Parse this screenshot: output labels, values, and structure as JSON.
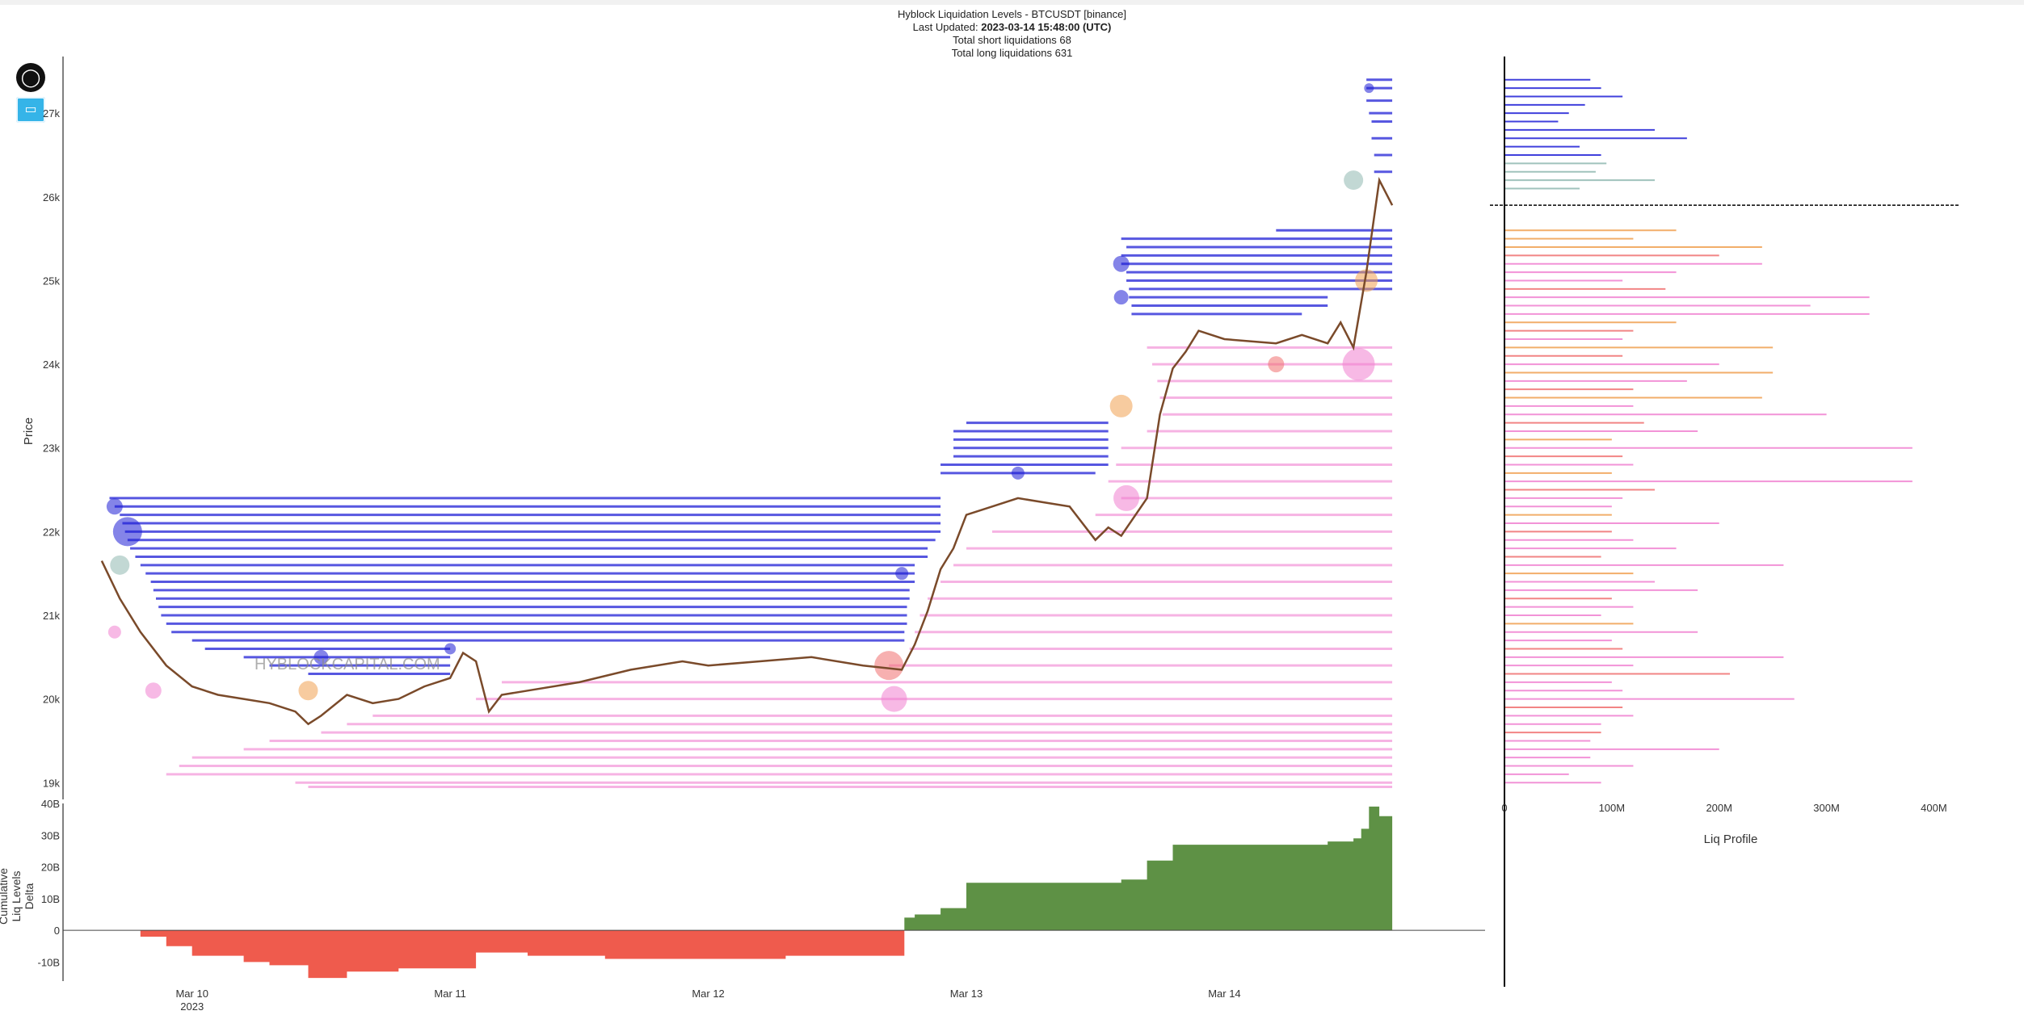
{
  "header": {
    "title": "Hyblock Liquidation Levels - BTCUSDT [binance]",
    "last_updated_label": "Last Updated:",
    "last_updated_value": "2023-03-14 15:48:00 (UTC)",
    "short_liq": "Total short liquidations 68",
    "long_liq": "Total long liquidations 631"
  },
  "watermark": "HYBLOCKCAPITAL.COM",
  "toolbar": {
    "logo_icon": "hyblock-logo-icon",
    "camera_icon": "camera-icon"
  },
  "colors": {
    "short_levels": "#1f1fd6",
    "short_levels_light": "#8fb8b0",
    "long_levels": "#f080d0",
    "long_levels_mid": "#f07070",
    "long_levels_orange": "#f0a050",
    "delta_negative": "#ef5b4d",
    "delta_positive": "#5e9145",
    "candle_up": "#2a7a2a",
    "candle_down": "#d04030"
  },
  "chart_data": [
    {
      "type": "line",
      "name": "price",
      "ylabel": "Price",
      "yticks": [
        "19k",
        "20k",
        "21k",
        "22k",
        "23k",
        "24k",
        "25k",
        "26k",
        "27k"
      ],
      "xticks": [
        "Mar 10",
        "Mar 11",
        "Mar 12",
        "Mar 13",
        "Mar 14"
      ],
      "xtick_sub": "2023",
      "x_range_days": [
        9.5,
        14.75
      ],
      "y_range": [
        18800,
        27600
      ],
      "x": [
        9.65,
        9.72,
        9.8,
        9.9,
        10.0,
        10.1,
        10.2,
        10.3,
        10.4,
        10.45,
        10.5,
        10.6,
        10.7,
        10.8,
        10.9,
        11.0,
        11.05,
        11.1,
        11.15,
        11.2,
        11.3,
        11.5,
        11.7,
        11.9,
        12.0,
        12.2,
        12.4,
        12.6,
        12.75,
        12.8,
        12.85,
        12.9,
        12.95,
        13.0,
        13.1,
        13.2,
        13.3,
        13.4,
        13.5,
        13.55,
        13.6,
        13.7,
        13.75,
        13.8,
        13.85,
        13.9,
        14.0,
        14.2,
        14.3,
        14.4,
        14.45,
        14.5,
        14.55,
        14.6,
        14.65
      ],
      "y": [
        21650,
        21200,
        20800,
        20400,
        20150,
        20050,
        20000,
        19950,
        19850,
        19700,
        19800,
        20050,
        19950,
        20000,
        20150,
        20250,
        20550,
        20450,
        19850,
        20050,
        20100,
        20200,
        20350,
        20450,
        20400,
        20450,
        20500,
        20400,
        20350,
        20650,
        21050,
        21550,
        21800,
        22200,
        22300,
        22400,
        22350,
        22300,
        21900,
        22050,
        21950,
        22400,
        23400,
        23950,
        24150,
        24400,
        24300,
        24250,
        24350,
        24250,
        24500,
        24200,
        25100,
        26200,
        25900
      ]
    },
    {
      "type": "bar",
      "name": "cumulative_liq_levels_delta",
      "ylabel": "Cumulative Liq Levels Delta",
      "yticks": [
        "40B",
        "30B",
        "20B",
        "10B",
        "0",
        "-10B"
      ],
      "y_range": [
        -16,
        40
      ],
      "x": [
        9.65,
        9.8,
        9.9,
        10.0,
        10.2,
        10.3,
        10.45,
        10.6,
        10.8,
        11.0,
        11.1,
        11.3,
        11.6,
        12.0,
        12.3,
        12.7,
        12.76,
        12.8,
        12.9,
        13.0,
        13.5,
        13.6,
        13.7,
        13.8,
        14.0,
        14.2,
        14.4,
        14.5,
        14.53,
        14.56,
        14.6,
        14.65
      ],
      "values": [
        0,
        -2,
        -5,
        -8,
        -10,
        -11,
        -15,
        -13,
        -12,
        -12,
        -7,
        -8,
        -9,
        -9,
        -8,
        -8,
        4,
        5,
        7,
        15,
        15,
        16,
        22,
        27,
        27,
        27,
        28,
        29,
        32,
        39,
        36,
        36
      ]
    },
    {
      "type": "bar",
      "orientation": "horizontal",
      "name": "liq_profile",
      "xlabel": "Liq Profile",
      "xticks": [
        "0",
        "100M",
        "200M",
        "300M",
        "400M"
      ],
      "x_range": [
        0,
        420
      ],
      "current_price": 25900,
      "levels": [
        27400,
        27300,
        27200,
        27100,
        27000,
        26900,
        26800,
        26700,
        26600,
        26500,
        26400,
        26300,
        26200,
        26100,
        25600,
        25500,
        25400,
        25300,
        25200,
        25100,
        25000,
        24900,
        24800,
        24700,
        24600,
        24500,
        24400,
        24300,
        24200,
        24100,
        24000,
        23900,
        23800,
        23700,
        23600,
        23500,
        23400,
        23300,
        23200,
        23100,
        23000,
        22900,
        22800,
        22700,
        22600,
        22500,
        22400,
        22300,
        22200,
        22100,
        22000,
        21900,
        21800,
        21700,
        21600,
        21500,
        21400,
        21300,
        21200,
        21100,
        21000,
        20900,
        20800,
        20700,
        20600,
        20500,
        20400,
        20300,
        20200,
        20100,
        20000,
        19900,
        19800,
        19700,
        19600,
        19500,
        19400,
        19300,
        19200,
        19100,
        19000
      ],
      "values": [
        80,
        90,
        110,
        75,
        60,
        50,
        140,
        170,
        70,
        90,
        95,
        85,
        140,
        70,
        160,
        120,
        240,
        200,
        240,
        160,
        110,
        150,
        340,
        285,
        340,
        160,
        120,
        110,
        250,
        110,
        200,
        250,
        170,
        120,
        240,
        120,
        300,
        130,
        180,
        100,
        380,
        110,
        120,
        100,
        380,
        140,
        110,
        100,
        100,
        200,
        100,
        120,
        160,
        90,
        260,
        120,
        140,
        180,
        100,
        120,
        90,
        120,
        180,
        100,
        110,
        260,
        120,
        210,
        100,
        110,
        270,
        110,
        120,
        90,
        90,
        80,
        200,
        80,
        120,
        60,
        90
      ],
      "category_colors": [
        "short",
        "short",
        "short",
        "short",
        "short",
        "short",
        "short",
        "short",
        "short",
        "short",
        "short-light",
        "short-light",
        "short-light",
        "short-light",
        "long-orange",
        "long-orange",
        "long-orange",
        "long-mid",
        "long",
        "long",
        "long",
        "long-mid",
        "long",
        "long",
        "long",
        "long-orange",
        "long-mid",
        "long",
        "long-orange",
        "long-mid",
        "long",
        "long-orange",
        "long",
        "long-mid",
        "long-orange",
        "long",
        "long",
        "long-mid",
        "long",
        "long-orange",
        "long",
        "long-mid",
        "long",
        "long-orange",
        "long",
        "long-mid",
        "long",
        "long",
        "long-orange",
        "long",
        "long-mid",
        "long",
        "long",
        "long-mid",
        "long",
        "long-orange",
        "long",
        "long",
        "long-mid",
        "long",
        "long",
        "long-orange",
        "long",
        "long",
        "long-mid",
        "long",
        "long",
        "long-mid",
        "long",
        "long",
        "long",
        "long-mid",
        "long",
        "long",
        "long-mid",
        "long",
        "long",
        "long",
        "long",
        "long",
        "long"
      ]
    }
  ],
  "short_levels": [
    {
      "price": 27400,
      "start": 14.55,
      "end": 14.65
    },
    {
      "price": 27300,
      "start": 14.55,
      "end": 14.65
    },
    {
      "price": 27150,
      "start": 14.55,
      "end": 14.65
    },
    {
      "price": 27000,
      "start": 14.56,
      "end": 14.65
    },
    {
      "price": 26900,
      "start": 14.57,
      "end": 14.65
    },
    {
      "price": 26700,
      "start": 14.57,
      "end": 14.65
    },
    {
      "price": 26500,
      "start": 14.58,
      "end": 14.65
    },
    {
      "price": 26300,
      "start": 14.58,
      "end": 14.65
    },
    {
      "price": 25600,
      "start": 14.2,
      "end": 14.65
    },
    {
      "price": 25500,
      "start": 13.6,
      "end": 14.65
    },
    {
      "price": 25400,
      "start": 13.62,
      "end": 14.65
    },
    {
      "price": 25300,
      "start": 13.6,
      "end": 14.65
    },
    {
      "price": 25200,
      "start": 13.6,
      "end": 14.65
    },
    {
      "price": 25100,
      "start": 13.62,
      "end": 14.65
    },
    {
      "price": 25000,
      "start": 13.62,
      "end": 14.65
    },
    {
      "price": 24900,
      "start": 13.63,
      "end": 14.65
    },
    {
      "price": 24800,
      "start": 13.63,
      "end": 14.4
    },
    {
      "price": 24700,
      "start": 13.64,
      "end": 14.4
    },
    {
      "price": 24600,
      "start": 13.64,
      "end": 14.3
    },
    {
      "price": 23300,
      "start": 13.0,
      "end": 13.55
    },
    {
      "price": 23200,
      "start": 12.95,
      "end": 13.55
    },
    {
      "price": 23100,
      "start": 12.95,
      "end": 13.55
    },
    {
      "price": 23000,
      "start": 12.95,
      "end": 13.55
    },
    {
      "price": 22900,
      "start": 12.95,
      "end": 13.55
    },
    {
      "price": 22800,
      "start": 12.9,
      "end": 13.55
    },
    {
      "price": 22700,
      "start": 12.9,
      "end": 13.5
    },
    {
      "price": 22400,
      "start": 9.68,
      "end": 12.9
    },
    {
      "price": 22300,
      "start": 9.7,
      "end": 12.9
    },
    {
      "price": 22200,
      "start": 9.72,
      "end": 12.9
    },
    {
      "price": 22100,
      "start": 9.73,
      "end": 12.9
    },
    {
      "price": 22000,
      "start": 9.74,
      "end": 12.9
    },
    {
      "price": 21900,
      "start": 9.75,
      "end": 12.88
    },
    {
      "price": 21800,
      "start": 9.76,
      "end": 12.85
    },
    {
      "price": 21700,
      "start": 9.78,
      "end": 12.85
    },
    {
      "price": 21600,
      "start": 9.8,
      "end": 12.8
    },
    {
      "price": 21500,
      "start": 9.82,
      "end": 12.8
    },
    {
      "price": 21400,
      "start": 9.84,
      "end": 12.8
    },
    {
      "price": 21300,
      "start": 9.85,
      "end": 12.78
    },
    {
      "price": 21200,
      "start": 9.86,
      "end": 12.78
    },
    {
      "price": 21100,
      "start": 9.87,
      "end": 12.77
    },
    {
      "price": 21000,
      "start": 9.88,
      "end": 12.77
    },
    {
      "price": 20900,
      "start": 9.9,
      "end": 12.77
    },
    {
      "price": 20800,
      "start": 9.92,
      "end": 12.76
    },
    {
      "price": 20700,
      "start": 10.0,
      "end": 12.76
    },
    {
      "price": 20600,
      "start": 10.05,
      "end": 11.0
    },
    {
      "price": 20500,
      "start": 10.2,
      "end": 11.0
    },
    {
      "price": 20400,
      "start": 10.3,
      "end": 11.0
    },
    {
      "price": 20300,
      "start": 10.45,
      "end": 11.0
    }
  ],
  "long_levels": [
    {
      "price": 24200,
      "start": 13.7,
      "end": 14.65
    },
    {
      "price": 24000,
      "start": 13.72,
      "end": 14.65
    },
    {
      "price": 23800,
      "start": 13.74,
      "end": 14.65
    },
    {
      "price": 23600,
      "start": 13.75,
      "end": 14.65
    },
    {
      "price": 23400,
      "start": 13.76,
      "end": 14.65
    },
    {
      "price": 23200,
      "start": 13.7,
      "end": 14.65
    },
    {
      "price": 23000,
      "start": 13.6,
      "end": 14.65
    },
    {
      "price": 22800,
      "start": 13.58,
      "end": 14.65
    },
    {
      "price": 22600,
      "start": 13.55,
      "end": 14.65
    },
    {
      "price": 22400,
      "start": 13.6,
      "end": 14.65
    },
    {
      "price": 22200,
      "start": 13.5,
      "end": 14.65
    },
    {
      "price": 22000,
      "start": 13.1,
      "end": 14.65
    },
    {
      "price": 21800,
      "start": 13.0,
      "end": 14.65
    },
    {
      "price": 21600,
      "start": 12.95,
      "end": 14.65
    },
    {
      "price": 21400,
      "start": 12.9,
      "end": 14.65
    },
    {
      "price": 21200,
      "start": 12.85,
      "end": 14.65
    },
    {
      "price": 21000,
      "start": 12.82,
      "end": 14.65
    },
    {
      "price": 20800,
      "start": 12.8,
      "end": 14.65
    },
    {
      "price": 20600,
      "start": 12.78,
      "end": 14.65
    },
    {
      "price": 20400,
      "start": 12.7,
      "end": 14.65
    },
    {
      "price": 20200,
      "start": 11.2,
      "end": 14.65
    },
    {
      "price": 20000,
      "start": 11.1,
      "end": 14.65
    },
    {
      "price": 19800,
      "start": 10.7,
      "end": 14.65
    },
    {
      "price": 19700,
      "start": 10.6,
      "end": 14.65
    },
    {
      "price": 19600,
      "start": 10.5,
      "end": 14.65
    },
    {
      "price": 19500,
      "start": 10.3,
      "end": 14.65
    },
    {
      "price": 19400,
      "start": 10.2,
      "end": 14.65
    },
    {
      "price": 19300,
      "start": 10.0,
      "end": 14.65
    },
    {
      "price": 19200,
      "start": 9.95,
      "end": 14.65
    },
    {
      "price": 19100,
      "start": 9.9,
      "end": 14.65
    },
    {
      "price": 19000,
      "start": 10.4,
      "end": 14.65
    },
    {
      "price": 18950,
      "start": 10.45,
      "end": 14.65
    }
  ],
  "bubbles": [
    {
      "x": 9.7,
      "y": 22300,
      "r": 10,
      "kind": "short"
    },
    {
      "x": 9.75,
      "y": 22000,
      "r": 18,
      "kind": "short"
    },
    {
      "x": 9.72,
      "y": 21600,
      "r": 12,
      "kind": "short-light"
    },
    {
      "x": 9.7,
      "y": 20800,
      "r": 8,
      "kind": "long"
    },
    {
      "x": 9.85,
      "y": 20100,
      "r": 10,
      "kind": "long"
    },
    {
      "x": 10.45,
      "y": 20100,
      "r": 12,
      "kind": "long-orange"
    },
    {
      "x": 12.7,
      "y": 20400,
      "r": 18,
      "kind": "long-mid"
    },
    {
      "x": 12.72,
      "y": 20000,
      "r": 16,
      "kind": "long"
    },
    {
      "x": 12.75,
      "y": 21500,
      "r": 8,
      "kind": "short"
    },
    {
      "x": 13.6,
      "y": 25200,
      "r": 10,
      "kind": "short"
    },
    {
      "x": 13.6,
      "y": 24800,
      "r": 9,
      "kind": "short"
    },
    {
      "x": 13.6,
      "y": 23500,
      "r": 14,
      "kind": "long-orange"
    },
    {
      "x": 13.62,
      "y": 22400,
      "r": 16,
      "kind": "long"
    },
    {
      "x": 14.2,
      "y": 24000,
      "r": 10,
      "kind": "long-mid"
    },
    {
      "x": 14.5,
      "y": 26200,
      "r": 12,
      "kind": "short-light"
    },
    {
      "x": 14.52,
      "y": 24000,
      "r": 20,
      "kind": "long"
    },
    {
      "x": 14.55,
      "y": 25000,
      "r": 14,
      "kind": "long-orange"
    },
    {
      "x": 14.56,
      "y": 27300,
      "r": 6,
      "kind": "short"
    },
    {
      "x": 13.2,
      "y": 22700,
      "r": 8,
      "kind": "short"
    },
    {
      "x": 11.0,
      "y": 20600,
      "r": 7,
      "kind": "short"
    },
    {
      "x": 10.5,
      "y": 20500,
      "r": 9,
      "kind": "short"
    }
  ]
}
